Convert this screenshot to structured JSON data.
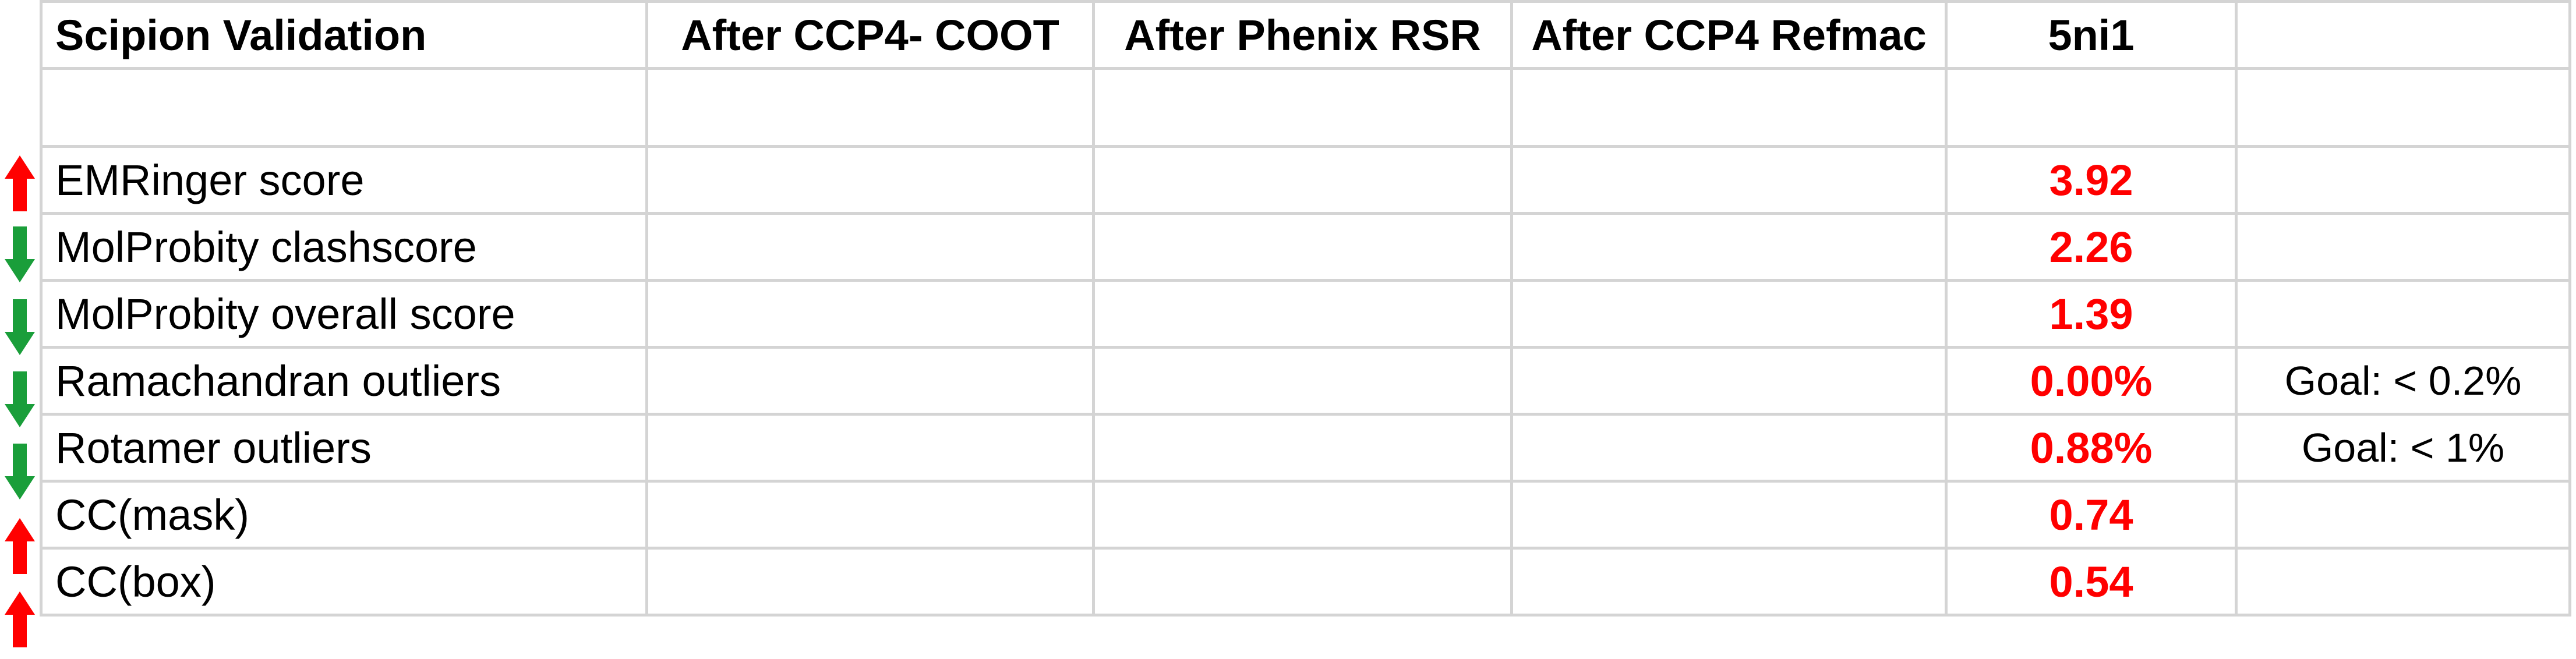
{
  "header": {
    "c0": "Scipion Validation",
    "c1": "After CCP4- COOT",
    "c2": "After Phenix RSR",
    "c3": "After CCP4 Refmac",
    "c4": "5ni1",
    "c5": ""
  },
  "rows": [
    {
      "label": "EMRinger score",
      "value": "3.92",
      "note": "",
      "arrow": "up-arrow-icon",
      "arrow_color": "#ff0000"
    },
    {
      "label": "MolProbity clashscore",
      "value": "2.26",
      "note": "",
      "arrow": "down-arrow-icon",
      "arrow_color": "#1a9e3a"
    },
    {
      "label": "MolProbity overall score",
      "value": "1.39",
      "note": "",
      "arrow": "down-arrow-icon",
      "arrow_color": "#1a9e3a"
    },
    {
      "label": "Ramachandran outliers",
      "value": "0.00%",
      "note": "Goal: < 0.2%",
      "arrow": "down-arrow-icon",
      "arrow_color": "#1a9e3a"
    },
    {
      "label": "Rotamer outliers",
      "value": "0.88%",
      "note": "Goal: < 1%",
      "arrow": "down-arrow-icon",
      "arrow_color": "#1a9e3a"
    },
    {
      "label": "CC(mask)",
      "value": "0.74",
      "note": "",
      "arrow": "up-arrow-icon",
      "arrow_color": "#ff0000"
    },
    {
      "label": "CC(box)",
      "value": "0.54",
      "note": "",
      "arrow": "up-arrow-icon",
      "arrow_color": "#ff0000"
    }
  ],
  "colors": {
    "value_text": "#ff0000",
    "grid_line": "#d4d4d4",
    "up_arrow": "#ff0000",
    "down_arrow": "#1a9e3a"
  }
}
